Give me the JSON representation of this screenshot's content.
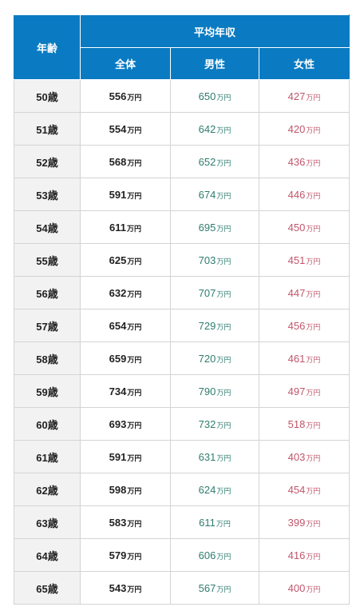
{
  "table": {
    "header": {
      "age": "年齢",
      "group": "平均年収",
      "all": "全体",
      "male": "男性",
      "female": "女性"
    },
    "unit": "万円",
    "rows": [
      {
        "age": "50歳",
        "all": "556",
        "male": "650",
        "female": "427"
      },
      {
        "age": "51歳",
        "all": "554",
        "male": "642",
        "female": "420"
      },
      {
        "age": "52歳",
        "all": "568",
        "male": "652",
        "female": "436"
      },
      {
        "age": "53歳",
        "all": "591",
        "male": "674",
        "female": "446"
      },
      {
        "age": "54歳",
        "all": "611",
        "male": "695",
        "female": "450"
      },
      {
        "age": "55歳",
        "all": "625",
        "male": "703",
        "female": "451"
      },
      {
        "age": "56歳",
        "all": "632",
        "male": "707",
        "female": "447"
      },
      {
        "age": "57歳",
        "all": "654",
        "male": "729",
        "female": "456"
      },
      {
        "age": "58歳",
        "all": "659",
        "male": "720",
        "female": "461"
      },
      {
        "age": "59歳",
        "all": "734",
        "male": "790",
        "female": "497"
      },
      {
        "age": "60歳",
        "all": "693",
        "male": "732",
        "female": "518"
      },
      {
        "age": "61歳",
        "all": "591",
        "male": "631",
        "female": "403"
      },
      {
        "age": "62歳",
        "all": "598",
        "male": "624",
        "female": "454"
      },
      {
        "age": "63歳",
        "all": "583",
        "male": "611",
        "female": "399"
      },
      {
        "age": "64歳",
        "all": "579",
        "male": "606",
        "female": "416"
      },
      {
        "age": "65歳",
        "all": "543",
        "male": "567",
        "female": "400"
      }
    ],
    "colors": {
      "header_bg": "#0a7bc2",
      "male": "#2e7d6e",
      "female": "#c0566b",
      "age_bg": "#f2f2f2"
    }
  }
}
